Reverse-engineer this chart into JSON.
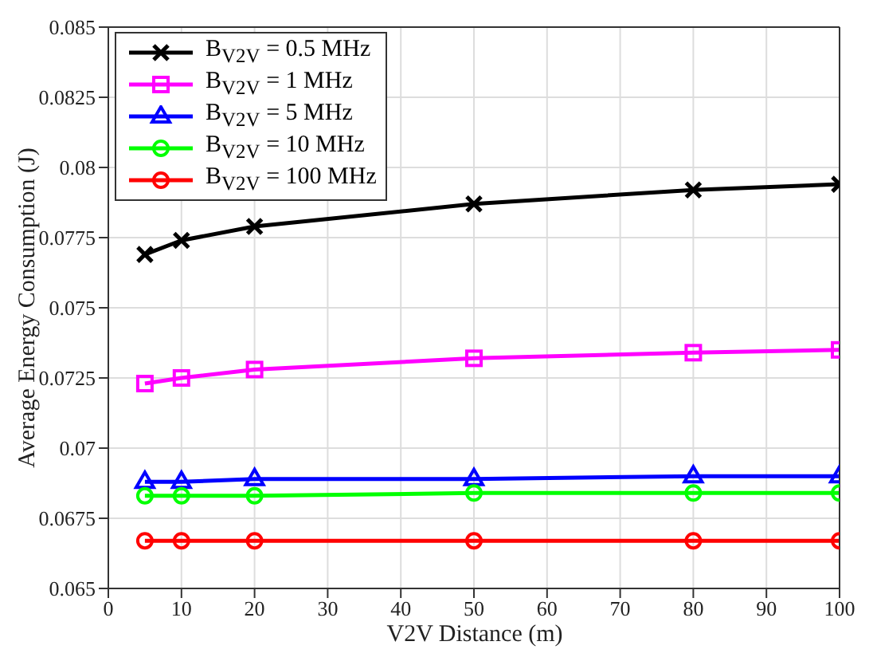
{
  "chart_data": {
    "type": "line",
    "xlabel": "V2V Distance (m)",
    "ylabel": "Average Energy Consumption (J)",
    "x": [
      5,
      10,
      20,
      50,
      80,
      100
    ],
    "series": [
      {
        "name": "B$_{V2V}$ = 0.5 MHz",
        "color": "#000000",
        "marker": "cross",
        "values": [
          0.0769,
          0.0774,
          0.0779,
          0.0787,
          0.0792,
          0.0794
        ]
      },
      {
        "name": "B$_{V2V}$ = 1 MHz",
        "color": "#ff00ff",
        "marker": "square",
        "values": [
          0.0723,
          0.0725,
          0.0728,
          0.0732,
          0.0734,
          0.0735
        ]
      },
      {
        "name": "B$_{V2V}$ = 5 MHz",
        "color": "#0000ff",
        "marker": "triangle",
        "values": [
          0.0688,
          0.0688,
          0.0689,
          0.0689,
          0.069,
          0.069
        ]
      },
      {
        "name": "B$_{V2V}$ = 10 MHz",
        "color": "#00ff00",
        "marker": "circle",
        "values": [
          0.0683,
          0.0683,
          0.0683,
          0.0684,
          0.0684,
          0.0684
        ]
      },
      {
        "name": "B$_{V2V}$ = 100 MHz",
        "color": "#ff0000",
        "marker": "circle",
        "values": [
          0.0667,
          0.0667,
          0.0667,
          0.0667,
          0.0667,
          0.0667
        ]
      }
    ],
    "xlim": [
      0,
      100
    ],
    "xticks": [
      0,
      10,
      20,
      30,
      40,
      50,
      60,
      70,
      80,
      90,
      100
    ],
    "ylim": [
      0.065,
      0.085
    ],
    "yticks": [
      0.065,
      0.0675,
      0.07,
      0.0725,
      0.075,
      0.0775,
      0.08,
      0.0825,
      0.085
    ],
    "grid": true,
    "legend": "top left",
    "line_style": "solid"
  }
}
